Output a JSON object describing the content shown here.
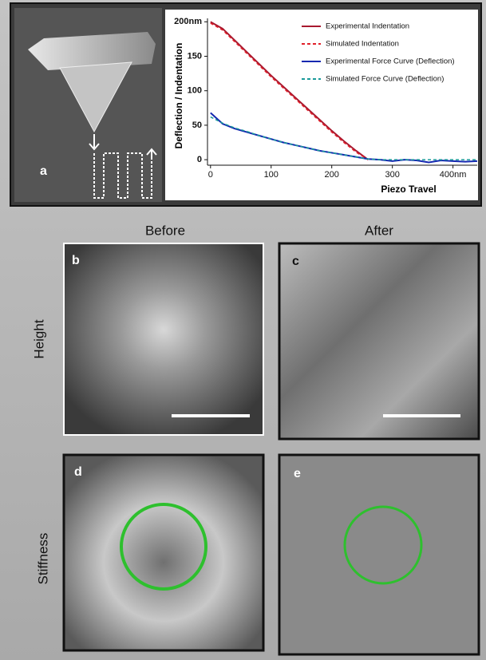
{
  "chart_data": {
    "type": "line",
    "x_label": "Piezo Travel",
    "y_label": "Deflection / Indentation",
    "x": [
      0,
      20,
      40,
      60,
      80,
      100,
      120,
      140,
      160,
      180,
      200,
      220,
      240,
      260,
      280,
      300,
      320,
      340,
      360,
      380,
      400,
      420,
      440
    ],
    "series": [
      {
        "name": "Experimental Indentation",
        "color": "#a8192f",
        "dashed": false,
        "values": [
          200,
          190,
          173,
          156,
          139,
          122,
          106,
          90,
          74,
          58,
          42,
          27,
          13,
          0,
          null,
          null,
          null,
          null,
          null,
          null,
          null,
          null,
          null
        ]
      },
      {
        "name": "Simulated Indentation",
        "color": "#e0202a",
        "dashed": true,
        "values": [
          198,
          188,
          171,
          154,
          137,
          120,
          104,
          88,
          72,
          56,
          40,
          25,
          11,
          0,
          null,
          null,
          null,
          null,
          null,
          null,
          null,
          null,
          null
        ]
      },
      {
        "name": "Experimental Force Curve (Deflection)",
        "color": "#1428b0",
        "dashed": false,
        "values": [
          68,
          52,
          45,
          40,
          35,
          30,
          25,
          21,
          17,
          13,
          10,
          7,
          4,
          1,
          0,
          -2,
          0,
          -1,
          -4,
          -1,
          -2,
          -3,
          -2
        ]
      },
      {
        "name": "Simulated Force Curve (Deflection)",
        "color": "#1a9a9a",
        "dashed": true,
        "values": [
          62,
          53,
          46,
          41,
          35,
          30,
          25,
          21,
          17,
          13,
          10,
          7,
          4,
          1,
          0,
          0,
          0,
          0,
          0,
          0,
          0,
          0,
          0
        ]
      }
    ],
    "xlim": [
      -5,
      440
    ],
    "ylim": [
      -8,
      205
    ],
    "xticks": [
      0,
      100,
      200,
      300,
      {
        "value": 400,
        "label": "400nm"
      }
    ],
    "yticks": [
      0,
      50,
      100,
      150,
      {
        "value": 200,
        "label": "200nm"
      }
    ],
    "grid": false,
    "legend": "top-right"
  },
  "panels": {
    "a": "a",
    "b": "b",
    "c": "c",
    "d": "d",
    "e": "e"
  },
  "columns": [
    "Before",
    "After"
  ],
  "rows": [
    "Height",
    "Stiffness"
  ]
}
